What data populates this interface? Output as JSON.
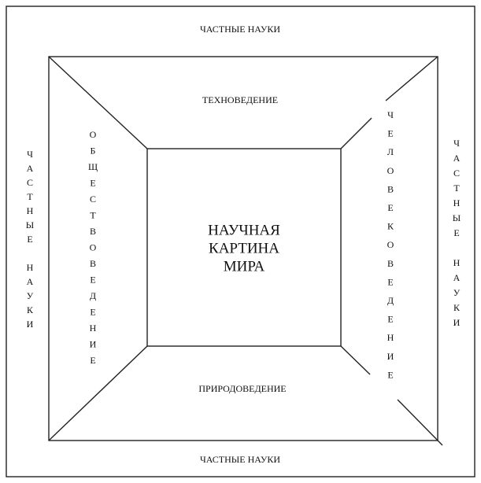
{
  "top": "ЧАСТНЫЕ НАУКИ",
  "bottom": "ЧАСТНЫЕ НАУКИ",
  "left": "ЧАСТНЫЕ НАУКИ",
  "right": "ЧАСТНЫЕ НАУКИ",
  "upper": "ТЕХНОВЕДЕНИЕ",
  "lower": "ПРИРОДОВЕДЕНИЕ",
  "inner_left": "ОБЩЕСТВОВЕДЕНИЕ",
  "inner_right": "ЧЕЛОВЕКОВЕДЕНИЕ",
  "center": [
    "НАУЧНАЯ",
    "КАРТИНА",
    "МИРА"
  ]
}
